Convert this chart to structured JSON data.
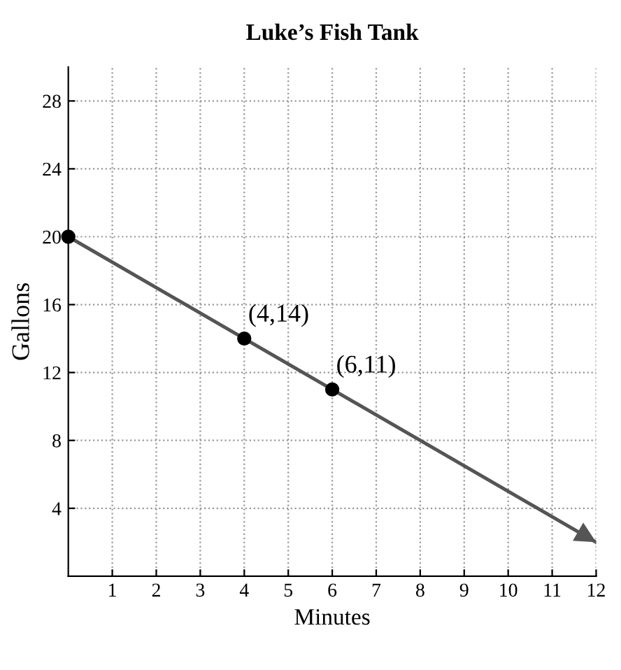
{
  "chart_data": {
    "type": "line",
    "title": "Luke’s Fish Tank",
    "xlabel": "Minutes",
    "ylabel": "Gallons",
    "series": [
      {
        "x": [
          0,
          4,
          6,
          12
        ],
        "values": [
          20,
          14,
          11,
          2
        ],
        "color": "#555555",
        "marker": "none",
        "line_style": "solid"
      },
      {
        "type": "scatter",
        "x": [
          0,
          4,
          6
        ],
        "values": [
          20,
          14,
          11
        ],
        "color": "#000000",
        "marker": "circle"
      }
    ],
    "annotations": [
      {
        "text": "(4,14)",
        "x": 4,
        "y": 14
      },
      {
        "text": "(6,11)",
        "x": 6,
        "y": 11
      }
    ],
    "xlim": [
      0,
      12
    ],
    "ylim": [
      0,
      30
    ],
    "xticks": [
      1,
      2,
      3,
      4,
      5,
      6,
      7,
      8,
      9,
      10,
      11,
      12
    ],
    "yticks": [
      4,
      8,
      12,
      16,
      20,
      24,
      28
    ],
    "grid": true,
    "legend": false
  }
}
